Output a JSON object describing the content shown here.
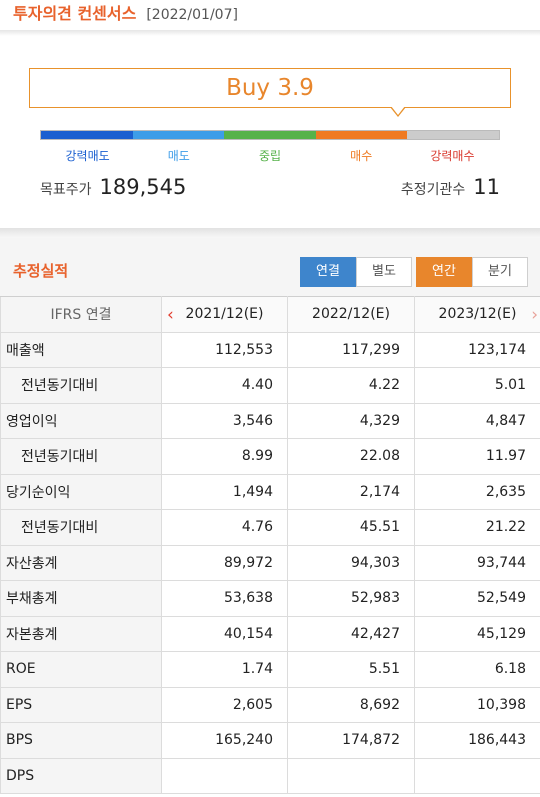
{
  "header": {
    "title": "투자의견 컨센서스",
    "date": "[2022/01/07]"
  },
  "consensus": {
    "rating": "Buy 3.9",
    "scale": [
      {
        "label": "강력매도",
        "color": "#1a5fd0"
      },
      {
        "label": "매도",
        "color": "#3d9de8"
      },
      {
        "label": "중립",
        "color": "#56b24a"
      },
      {
        "label": "매수",
        "color": "#ef7a22"
      },
      {
        "label": "강력매수",
        "color": "#d93a2f"
      }
    ],
    "pointer_position": 3.9,
    "target_price_label": "목표주가",
    "target_price": "189,545",
    "analyst_count_label": "추정기관수",
    "analyst_count": "11"
  },
  "estimates": {
    "title": "추정실적",
    "basis_toggle": {
      "consolidated": "연결",
      "separate": "별도",
      "selected": "연결"
    },
    "period_toggle": {
      "annual": "연간",
      "quarterly": "분기",
      "selected": "연간"
    },
    "corner_label": "IFRS 연결",
    "columns": [
      "2021/12(E)",
      "2022/12(E)",
      "2023/12(E)"
    ],
    "prev_arrow": "‹",
    "next_arrow": "›",
    "rows": [
      {
        "label": "매출액",
        "sub": false,
        "values": [
          "112,553",
          "117,299",
          "123,174"
        ]
      },
      {
        "label": "전년동기대비",
        "sub": true,
        "values": [
          "4.40",
          "4.22",
          "5.01"
        ]
      },
      {
        "label": "영업이익",
        "sub": false,
        "values": [
          "3,546",
          "4,329",
          "4,847"
        ]
      },
      {
        "label": "전년동기대비",
        "sub": true,
        "values": [
          "8.99",
          "22.08",
          "11.97"
        ]
      },
      {
        "label": "당기순이익",
        "sub": false,
        "values": [
          "1,494",
          "2,174",
          "2,635"
        ]
      },
      {
        "label": "전년동기대비",
        "sub": true,
        "values": [
          "4.76",
          "45.51",
          "21.22"
        ]
      },
      {
        "label": "자산총계",
        "sub": false,
        "values": [
          "89,972",
          "94,303",
          "93,744"
        ]
      },
      {
        "label": "부채총계",
        "sub": false,
        "values": [
          "53,638",
          "52,983",
          "52,549"
        ]
      },
      {
        "label": "자본총계",
        "sub": false,
        "values": [
          "40,154",
          "42,427",
          "45,129"
        ]
      },
      {
        "label": "ROE",
        "sub": false,
        "values": [
          "1.74",
          "5.51",
          "6.18"
        ]
      },
      {
        "label": "EPS",
        "sub": false,
        "values": [
          "2,605",
          "8,692",
          "10,398"
        ]
      },
      {
        "label": "BPS",
        "sub": false,
        "values": [
          "165,240",
          "174,872",
          "186,443"
        ]
      },
      {
        "label": "DPS",
        "sub": false,
        "values": [
          "",
          "",
          ""
        ]
      }
    ]
  }
}
